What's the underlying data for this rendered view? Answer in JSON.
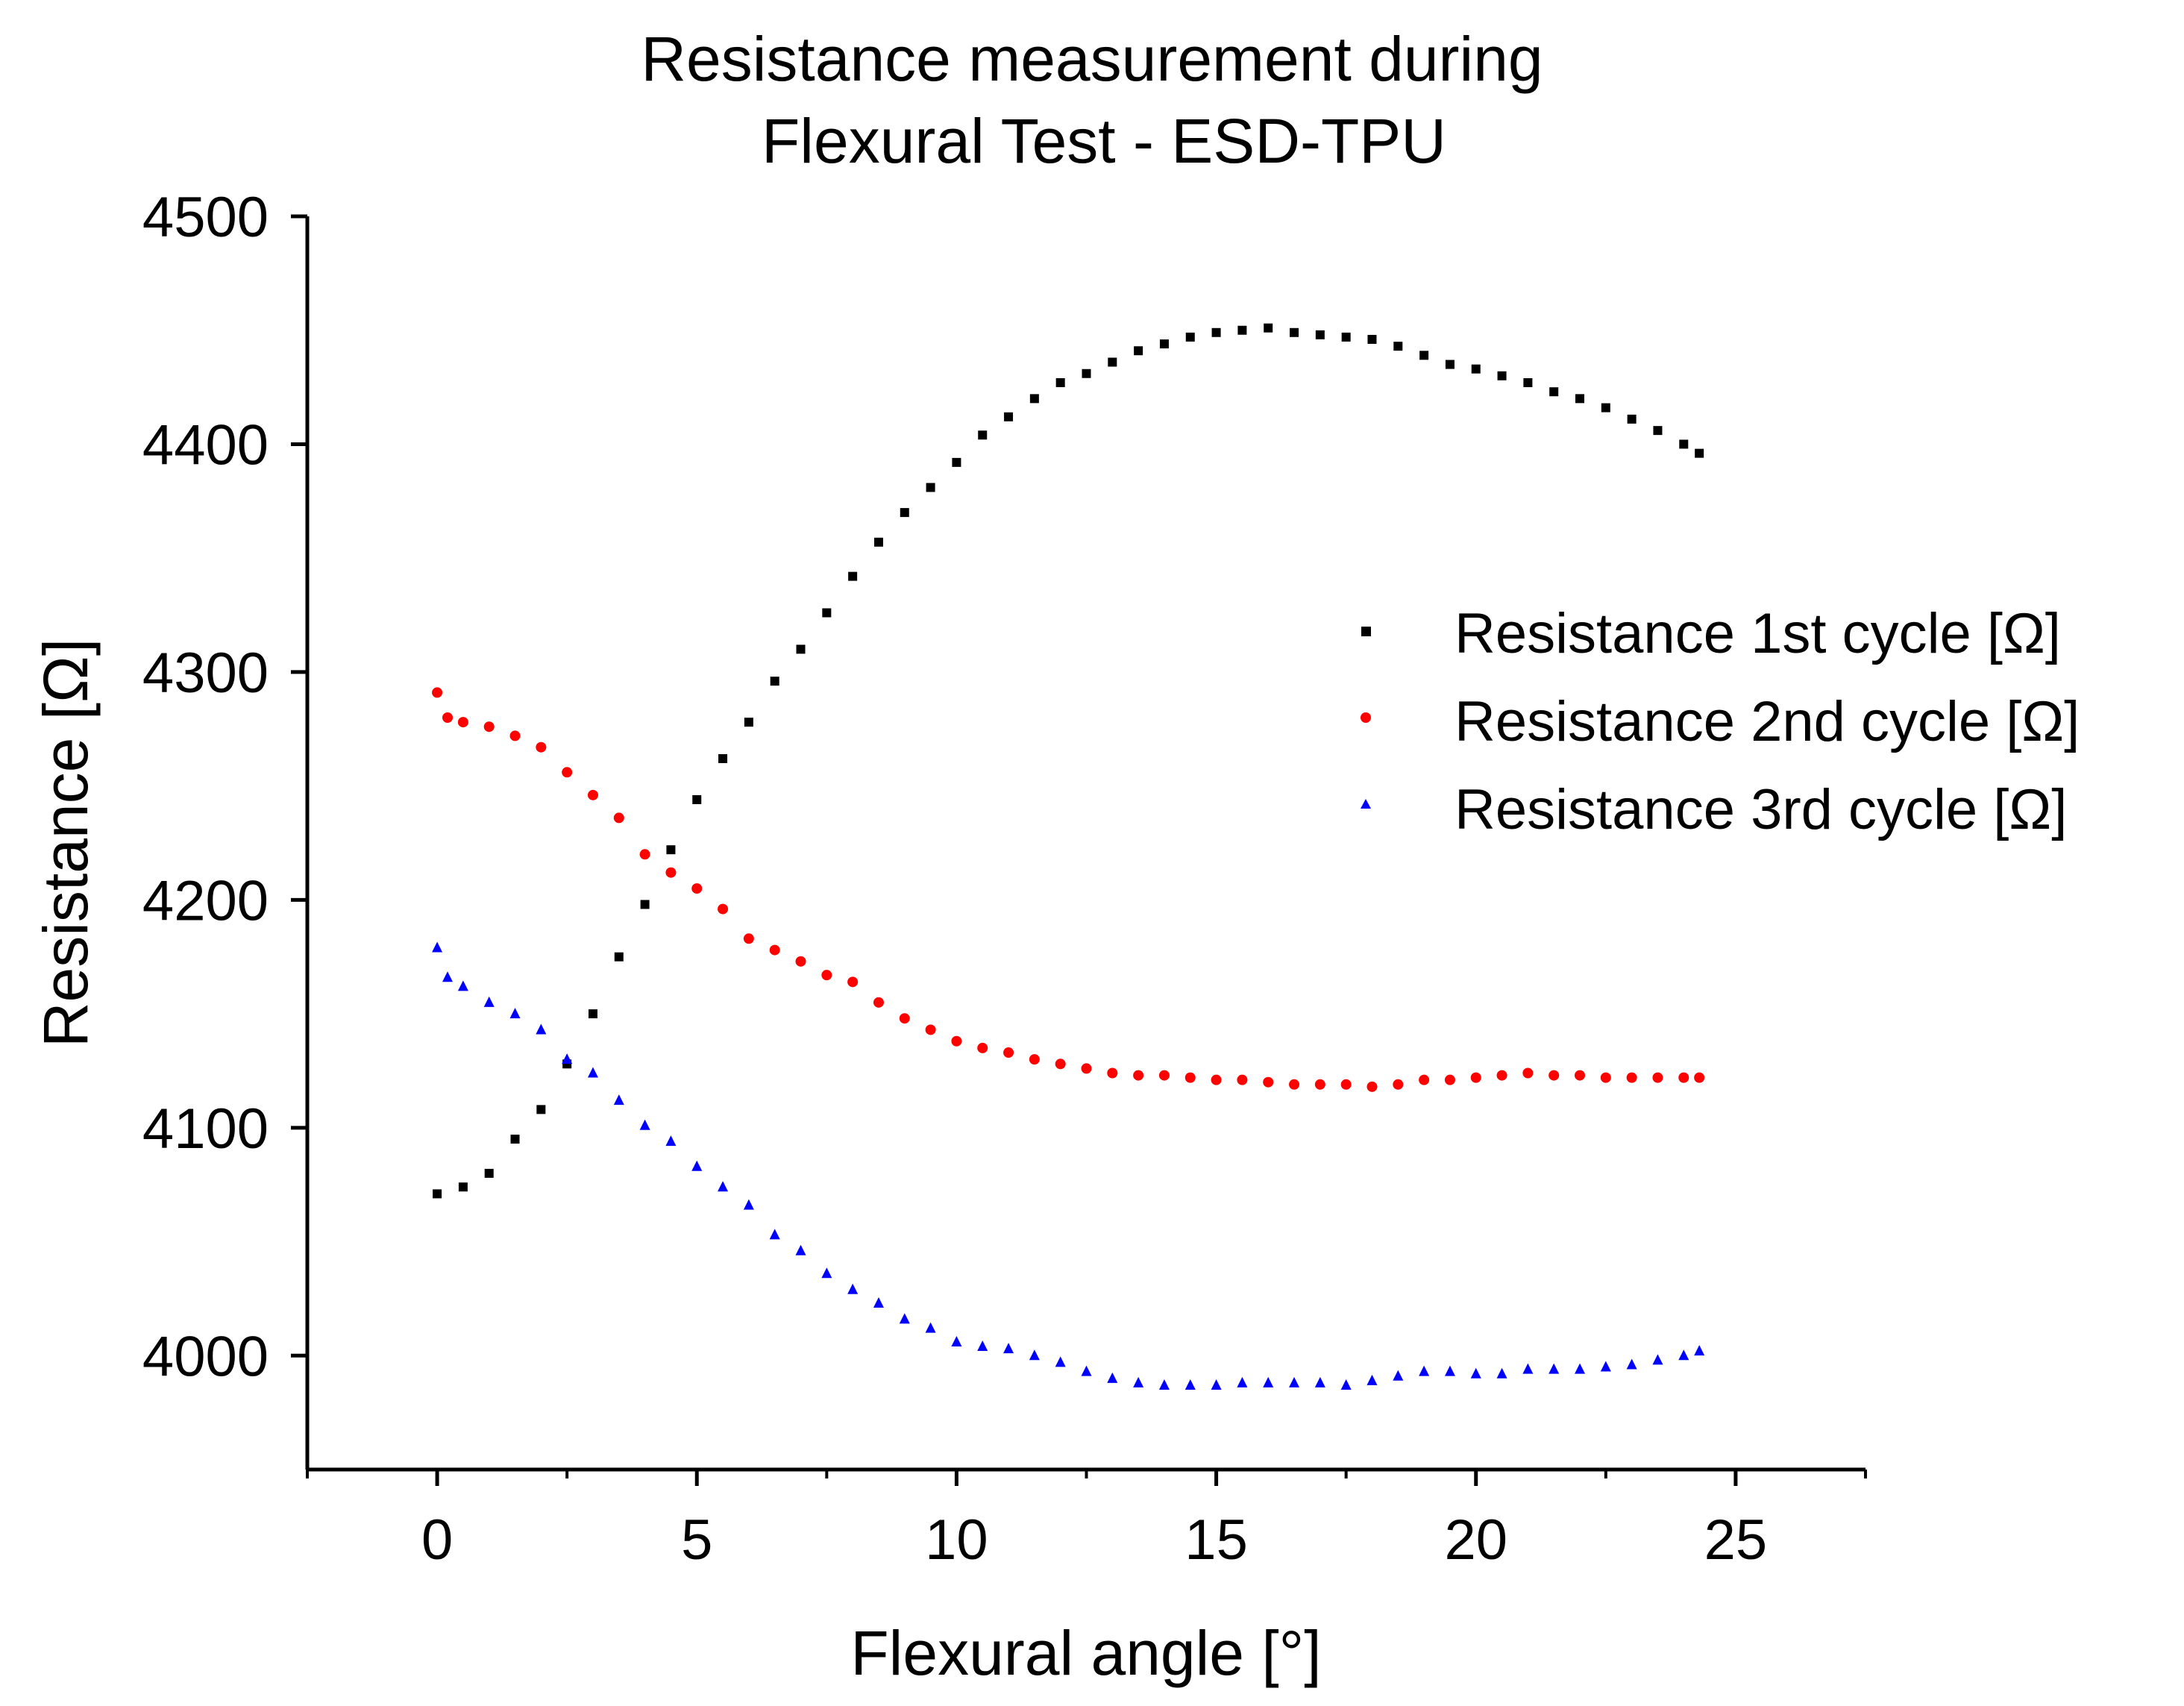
{
  "chart_data": {
    "type": "scatter",
    "title_lines": [
      "Resistance measurement during",
      "Flexural Test - ESD-TPU"
    ],
    "xlabel": "Flexural angle [°]",
    "ylabel": "Resistance [Ω]",
    "xlim": [
      -2.5,
      27.5
    ],
    "ylim": [
      3950,
      4500
    ],
    "x_ticks": [
      0,
      5,
      10,
      15,
      20,
      25
    ],
    "x_tick_labels": [
      "0",
      "5",
      "10",
      "15",
      "20",
      "25"
    ],
    "y_ticks": [
      4000,
      4100,
      4200,
      4300,
      4400,
      4500
    ],
    "y_tick_labels": [
      "4000",
      "4100",
      "4200",
      "4300",
      "4400",
      "4500"
    ],
    "legend_position": "right-center",
    "series": [
      {
        "name": "Resistance 1st cycle [Ω]",
        "color": "#000000",
        "marker": "square",
        "points": [
          [
            0,
            4071
          ],
          [
            0.5,
            4074
          ],
          [
            1,
            4080
          ],
          [
            1.5,
            4095
          ],
          [
            2,
            4108
          ],
          [
            2.5,
            4128
          ],
          [
            3,
            4150
          ],
          [
            3.5,
            4175
          ],
          [
            4,
            4198
          ],
          [
            4.5,
            4222
          ],
          [
            5,
            4244
          ],
          [
            5.5,
            4262
          ],
          [
            6,
            4278
          ],
          [
            6.5,
            4296
          ],
          [
            7,
            4310
          ],
          [
            7.5,
            4326
          ],
          [
            8,
            4342
          ],
          [
            8.5,
            4357
          ],
          [
            9,
            4370
          ],
          [
            9.5,
            4381
          ],
          [
            10,
            4392
          ],
          [
            10.5,
            4404
          ],
          [
            11,
            4412
          ],
          [
            11.5,
            4420
          ],
          [
            12,
            4427
          ],
          [
            12.5,
            4431
          ],
          [
            13,
            4436
          ],
          [
            13.5,
            4441
          ],
          [
            14,
            4444
          ],
          [
            14.5,
            4447
          ],
          [
            15,
            4449
          ],
          [
            15.5,
            4450
          ],
          [
            16,
            4451
          ],
          [
            16.5,
            4449
          ],
          [
            17,
            4448
          ],
          [
            17.5,
            4447
          ],
          [
            18,
            4446
          ],
          [
            18.5,
            4443
          ],
          [
            19,
            4439
          ],
          [
            19.5,
            4435
          ],
          [
            20,
            4433
          ],
          [
            20.5,
            4430
          ],
          [
            21,
            4427
          ],
          [
            21.5,
            4423
          ],
          [
            22,
            4420
          ],
          [
            22.5,
            4416
          ],
          [
            23,
            4411
          ],
          [
            23.5,
            4406
          ],
          [
            24,
            4400
          ],
          [
            24.3,
            4396
          ]
        ]
      },
      {
        "name": "Resistance 2nd cycle [Ω]",
        "color": "#ff0000",
        "marker": "circle",
        "points": [
          [
            0,
            4291
          ],
          [
            0.2,
            4280
          ],
          [
            0.5,
            4278
          ],
          [
            1,
            4276
          ],
          [
            1.5,
            4272
          ],
          [
            2,
            4267
          ],
          [
            2.5,
            4256
          ],
          [
            3,
            4246
          ],
          [
            3.5,
            4236
          ],
          [
            4,
            4220
          ],
          [
            4.5,
            4212
          ],
          [
            5,
            4205
          ],
          [
            5.5,
            4196
          ],
          [
            6,
            4183
          ],
          [
            6.5,
            4178
          ],
          [
            7,
            4173
          ],
          [
            7.5,
            4167
          ],
          [
            8,
            4164
          ],
          [
            8.5,
            4155
          ],
          [
            9,
            4148
          ],
          [
            9.5,
            4143
          ],
          [
            10,
            4138
          ],
          [
            10.5,
            4135
          ],
          [
            11,
            4133
          ],
          [
            11.5,
            4130
          ],
          [
            12,
            4128
          ],
          [
            12.5,
            4126
          ],
          [
            13,
            4124
          ],
          [
            13.5,
            4123
          ],
          [
            14,
            4123
          ],
          [
            14.5,
            4122
          ],
          [
            15,
            4121
          ],
          [
            15.5,
            4121
          ],
          [
            16,
            4120
          ],
          [
            16.5,
            4119
          ],
          [
            17,
            4119
          ],
          [
            17.5,
            4119
          ],
          [
            18,
            4118
          ],
          [
            18.5,
            4119
          ],
          [
            19,
            4121
          ],
          [
            19.5,
            4121
          ],
          [
            20,
            4122
          ],
          [
            20.5,
            4123
          ],
          [
            21,
            4124
          ],
          [
            21.5,
            4123
          ],
          [
            22,
            4123
          ],
          [
            22.5,
            4122
          ],
          [
            23,
            4122
          ],
          [
            23.5,
            4122
          ],
          [
            24,
            4122
          ],
          [
            24.3,
            4122
          ]
        ]
      },
      {
        "name": "Resistance 3rd cycle [Ω]",
        "color": "#0000ff",
        "marker": "triangle",
        "points": [
          [
            0,
            4179
          ],
          [
            0.2,
            4166
          ],
          [
            0.5,
            4162
          ],
          [
            1,
            4155
          ],
          [
            1.5,
            4150
          ],
          [
            2,
            4143
          ],
          [
            2.5,
            4130
          ],
          [
            3,
            4124
          ],
          [
            3.5,
            4112
          ],
          [
            4,
            4101
          ],
          [
            4.5,
            4094
          ],
          [
            5,
            4083
          ],
          [
            5.5,
            4074
          ],
          [
            6,
            4066
          ],
          [
            6.5,
            4053
          ],
          [
            7,
            4046
          ],
          [
            7.5,
            4036
          ],
          [
            8,
            4029
          ],
          [
            8.5,
            4023
          ],
          [
            9,
            4016
          ],
          [
            9.5,
            4012
          ],
          [
            10,
            4006
          ],
          [
            10.5,
            4004
          ],
          [
            11,
            4003
          ],
          [
            11.5,
            4000
          ],
          [
            12,
            3997
          ],
          [
            12.5,
            3993
          ],
          [
            13,
            3990
          ],
          [
            13.5,
            3988
          ],
          [
            14,
            3987
          ],
          [
            14.5,
            3987
          ],
          [
            15,
            3987
          ],
          [
            15.5,
            3988
          ],
          [
            16,
            3988
          ],
          [
            16.5,
            3988
          ],
          [
            17,
            3988
          ],
          [
            17.5,
            3987
          ],
          [
            18,
            3989
          ],
          [
            18.5,
            3991
          ],
          [
            19,
            3993
          ],
          [
            19.5,
            3993
          ],
          [
            20,
            3992
          ],
          [
            20.5,
            3992
          ],
          [
            21,
            3994
          ],
          [
            21.5,
            3994
          ],
          [
            22,
            3994
          ],
          [
            22.5,
            3995
          ],
          [
            23,
            3996
          ],
          [
            23.5,
            3998
          ],
          [
            24,
            4000
          ],
          [
            24.3,
            4002
          ]
        ]
      }
    ]
  }
}
